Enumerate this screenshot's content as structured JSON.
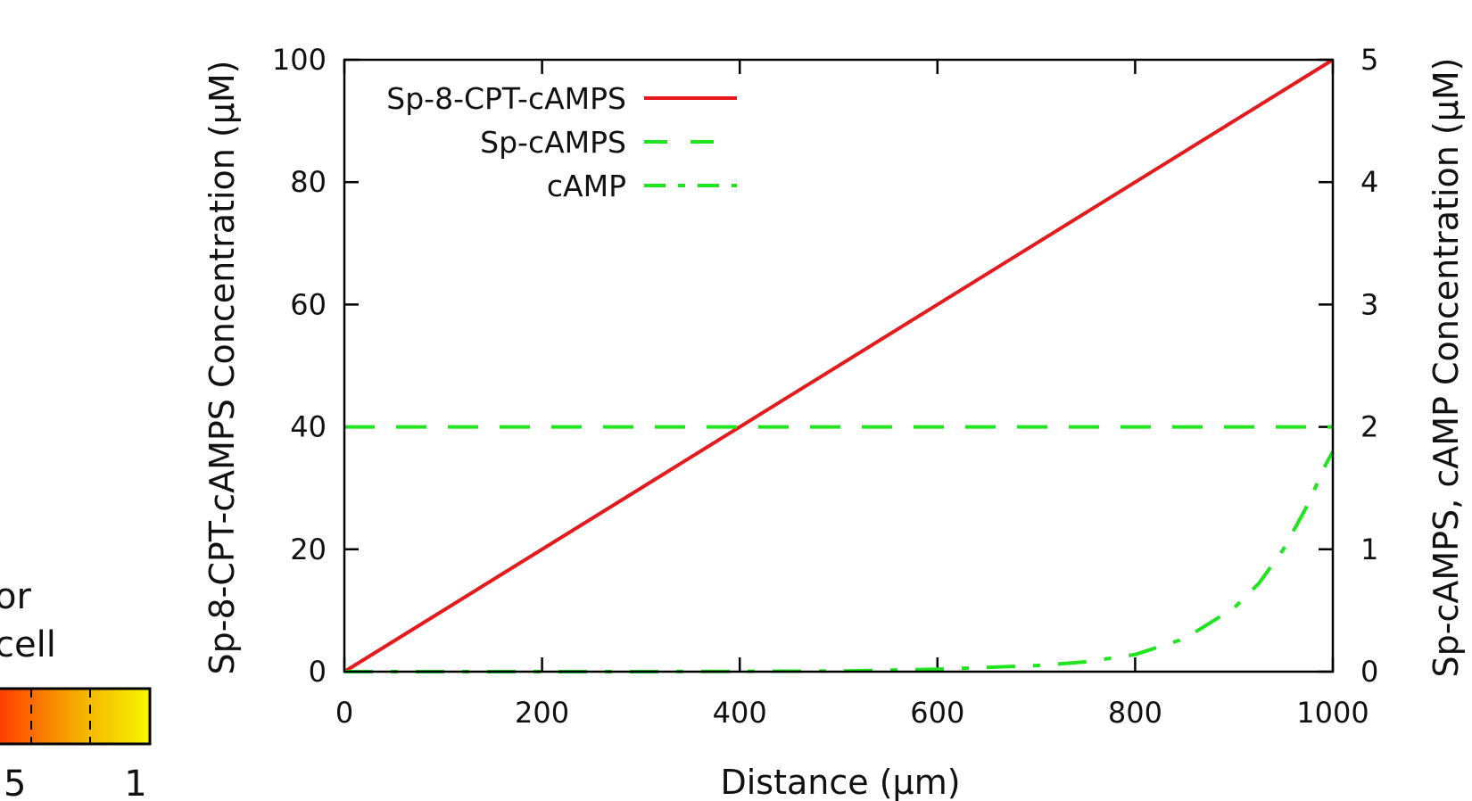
{
  "chart_data": {
    "type": "line",
    "title": "",
    "xlabel": "Distance (μm)",
    "ylabel_left": "Sp-8-CPT-cAMPS Concentration (μM)",
    "ylabel_right": "Sp-cAMPS, cAMP Concentration (μM)",
    "xlim": [
      0,
      1000
    ],
    "ylim_left": [
      0,
      100
    ],
    "ylim_right": [
      0,
      5
    ],
    "x_ticks": [
      "0",
      "200",
      "400",
      "600",
      "800",
      "1000"
    ],
    "y_left_ticks": [
      "0",
      "20",
      "40",
      "60",
      "80",
      "100"
    ],
    "y_right_ticks": [
      "0",
      "1",
      "2",
      "3",
      "4",
      "5"
    ],
    "grid": false,
    "legend_position": "top-left",
    "series": [
      {
        "name": "Sp-8-CPT-cAMPS",
        "axis": "left",
        "color": "#e41a1c",
        "style": "solid",
        "x": [
          0,
          1000
        ],
        "y": [
          0,
          100
        ]
      },
      {
        "name": "Sp-cAMPS",
        "axis": "right",
        "color": "#1fe61f",
        "style": "dashed",
        "x": [
          0,
          1000
        ],
        "y": [
          2,
          2
        ]
      },
      {
        "name": "cAMP",
        "axis": "right",
        "color": "#1fe61f",
        "style": "dashdot",
        "x": [
          0,
          300,
          500,
          600,
          700,
          750,
          800,
          850,
          900,
          925,
          950,
          975,
          990,
          1000
        ],
        "y": [
          0,
          0,
          0.005,
          0.02,
          0.05,
          0.08,
          0.14,
          0.27,
          0.52,
          0.72,
          1.0,
          1.37,
          1.65,
          1.8
        ]
      }
    ]
  },
  "colorbar_fragment": {
    "label_line1": "or",
    "label_line2": "cell",
    "tick_labels": [
      "5",
      "1"
    ],
    "color_start": "#ff3a00",
    "color_mid": "#f5a800",
    "color_end": "#f7f700"
  }
}
